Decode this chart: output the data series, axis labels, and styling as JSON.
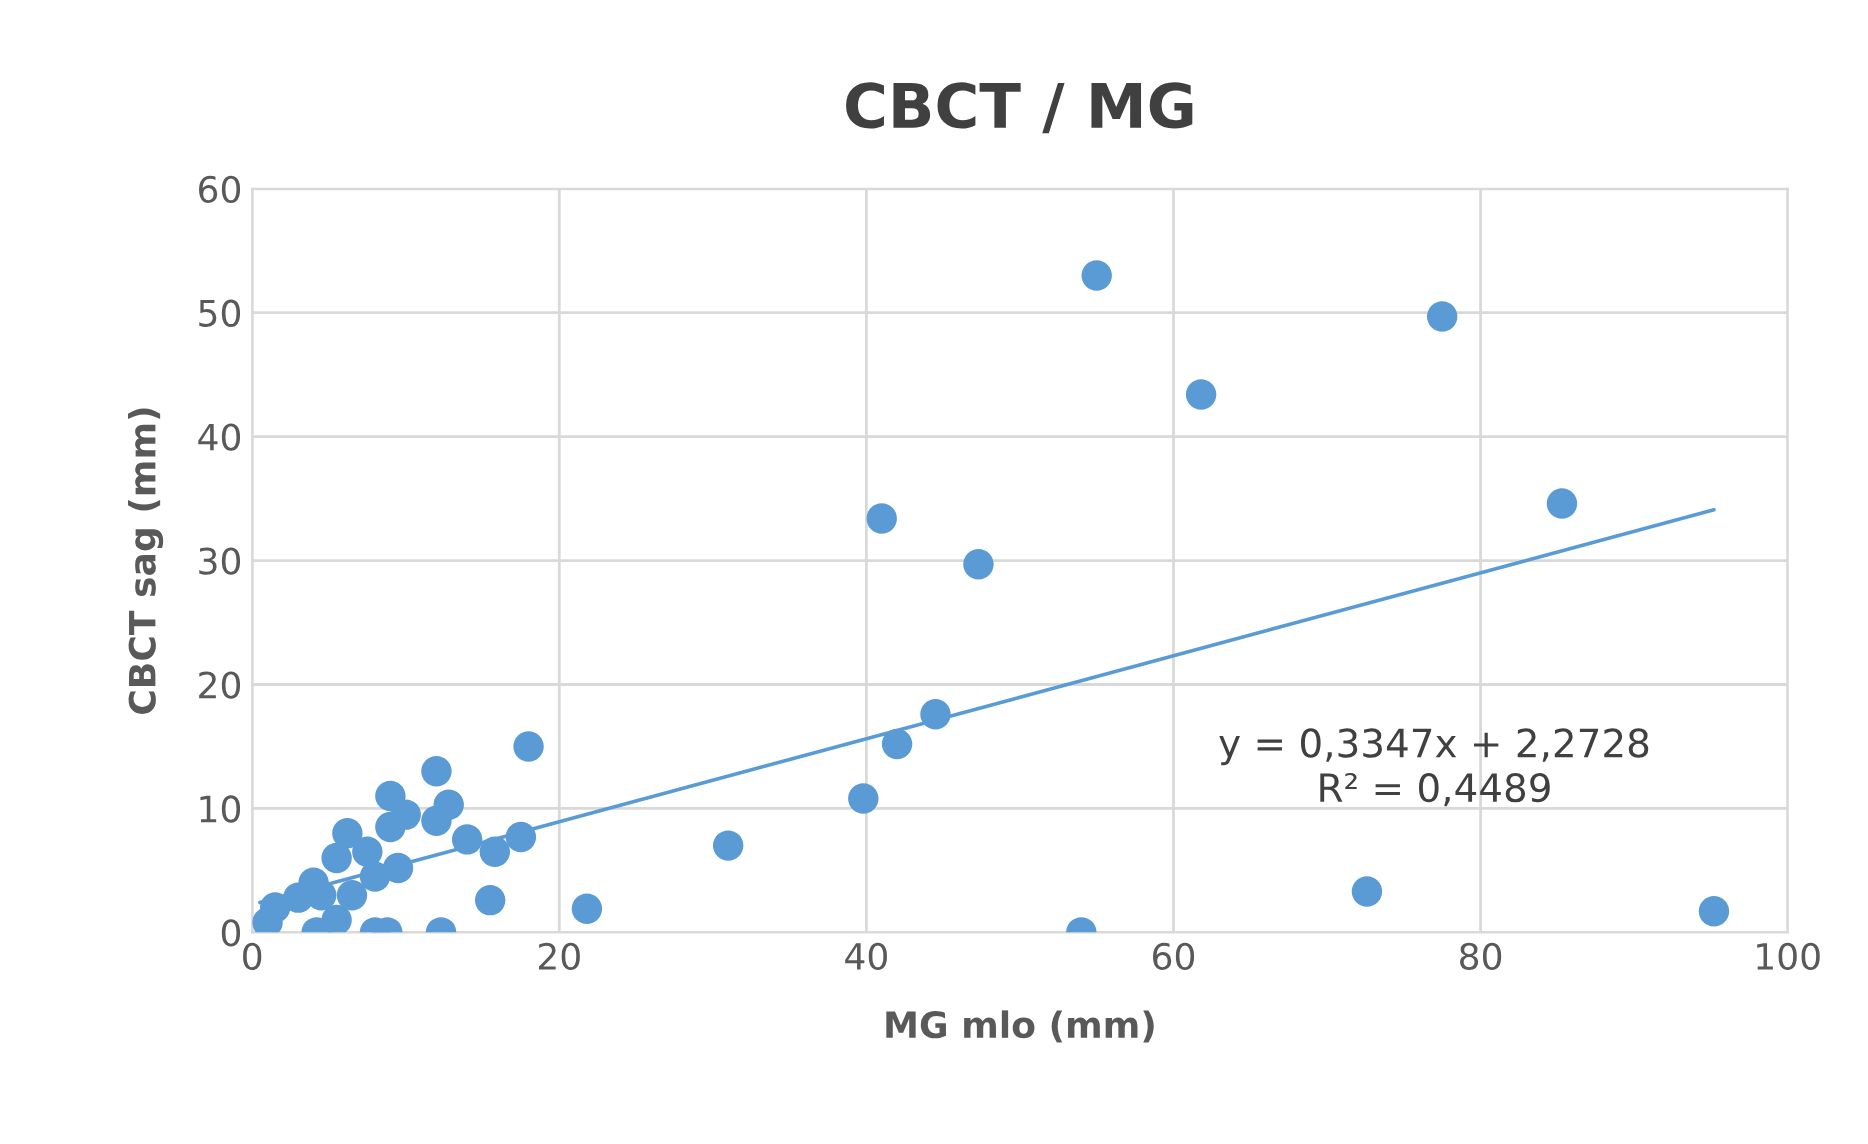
{
  "chart_data": {
    "type": "scatter",
    "title": "CBCT / MG",
    "xlabel": "MG mlo (mm)",
    "ylabel": "CBCT sag (mm)",
    "xlim": [
      0,
      100
    ],
    "xticks": [
      0,
      20,
      40,
      60,
      80,
      100
    ],
    "ylim": [
      0,
      60
    ],
    "yticks": [
      0,
      10,
      20,
      30,
      40,
      50,
      60
    ],
    "grid": true,
    "marker": "circle",
    "series": [
      {
        "color": "#5b9bd5",
        "x": [
          1,
          1.5,
          3,
          4,
          4.2,
          4.5,
          5.5,
          5.5,
          6.2,
          6.5,
          7.5,
          8,
          8,
          8.8,
          9,
          9,
          9.5,
          10,
          12,
          12,
          12.3,
          12.8,
          14,
          15.5,
          15.8,
          17.5,
          18,
          21.8,
          31,
          39.8,
          41,
          42,
          44.5,
          47.3,
          54,
          55,
          61.8,
          72.6,
          77.5,
          85.3,
          95.2
        ],
        "values": [
          0.8,
          2,
          2.8,
          4,
          0,
          3,
          6,
          1,
          8,
          3,
          6.5,
          4.5,
          0,
          0,
          8.5,
          11,
          5.2,
          9.5,
          13,
          9,
          0,
          10.3,
          7.5,
          2.6,
          6.5,
          7.7,
          15,
          1.9,
          7,
          10.8,
          33.4,
          15.2,
          17.6,
          29.7,
          0,
          53,
          43.4,
          3.3,
          49.7,
          34.6,
          1.7
        ]
      },
      {
        "type": "line",
        "color": "#5b9bd5",
        "marker": "none",
        "line_style": "solid",
        "x": [
          0.5,
          95.2
        ],
        "values": [
          2.4,
          34.1
        ]
      }
    ],
    "annotations": [
      "y = 0,3347x + 2,2728",
      "R² = 0,4489"
    ],
    "legend": false
  }
}
